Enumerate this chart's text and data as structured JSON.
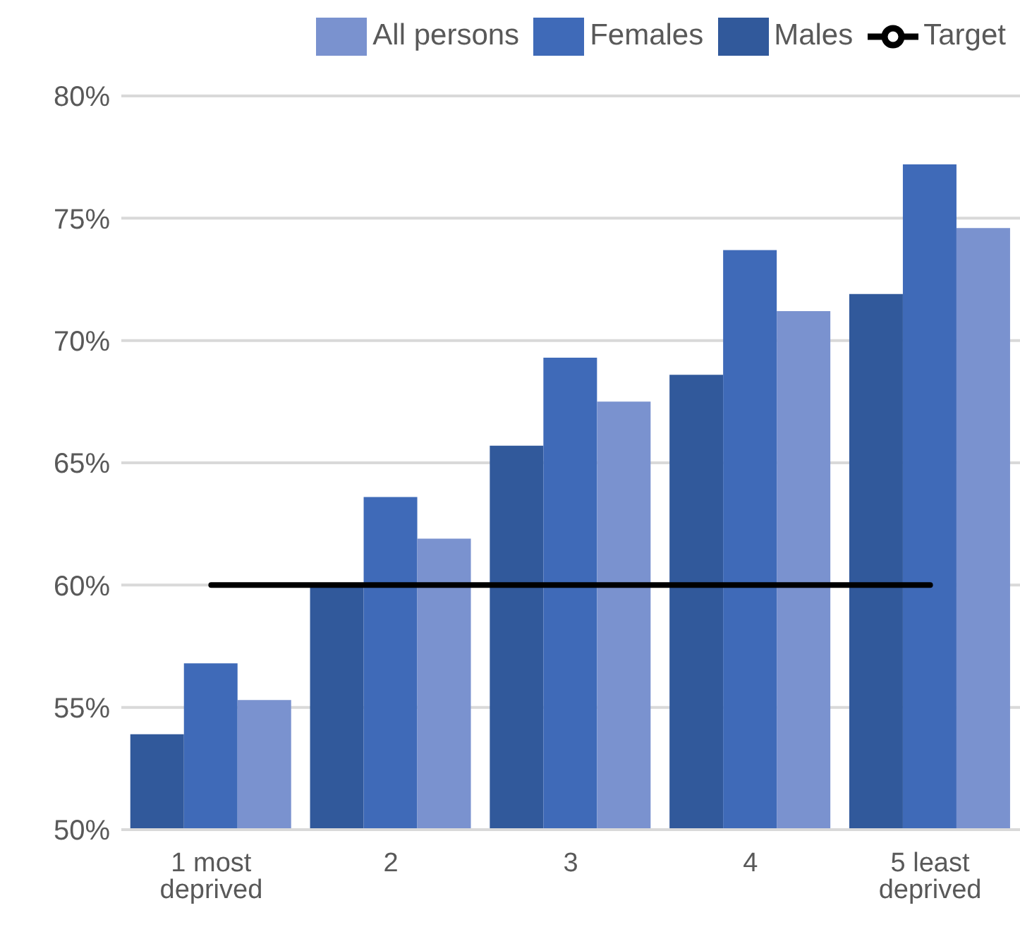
{
  "chart_data": {
    "type": "bar",
    "categories": [
      "1 most deprived",
      "2",
      "3",
      "4",
      "5 least deprived"
    ],
    "series": [
      {
        "name": "Males",
        "color": "#31599b",
        "values": [
          53.9,
          60.0,
          65.7,
          68.6,
          71.9
        ]
      },
      {
        "name": "Females",
        "color": "#3f6ab8",
        "values": [
          56.8,
          63.6,
          69.3,
          73.7,
          77.2
        ]
      },
      {
        "name": "All persons",
        "color": "#7a92cf",
        "values": [
          55.3,
          61.9,
          67.5,
          71.2,
          74.6
        ]
      },
      {
        "name": "Target",
        "type": "line",
        "color": "#000000",
        "values": [
          60,
          60,
          60,
          60,
          60
        ]
      }
    ],
    "ylim": [
      50,
      80
    ],
    "yticks": [
      {
        "value": 50,
        "label": "50%"
      },
      {
        "value": 55,
        "label": "55%"
      },
      {
        "value": 60,
        "label": "60%"
      },
      {
        "value": 65,
        "label": "65%"
      },
      {
        "value": 70,
        "label": "70%"
      },
      {
        "value": 75,
        "label": "75%"
      },
      {
        "value": 80,
        "label": "80%"
      }
    ],
    "grid": "y",
    "legend": "top right"
  }
}
